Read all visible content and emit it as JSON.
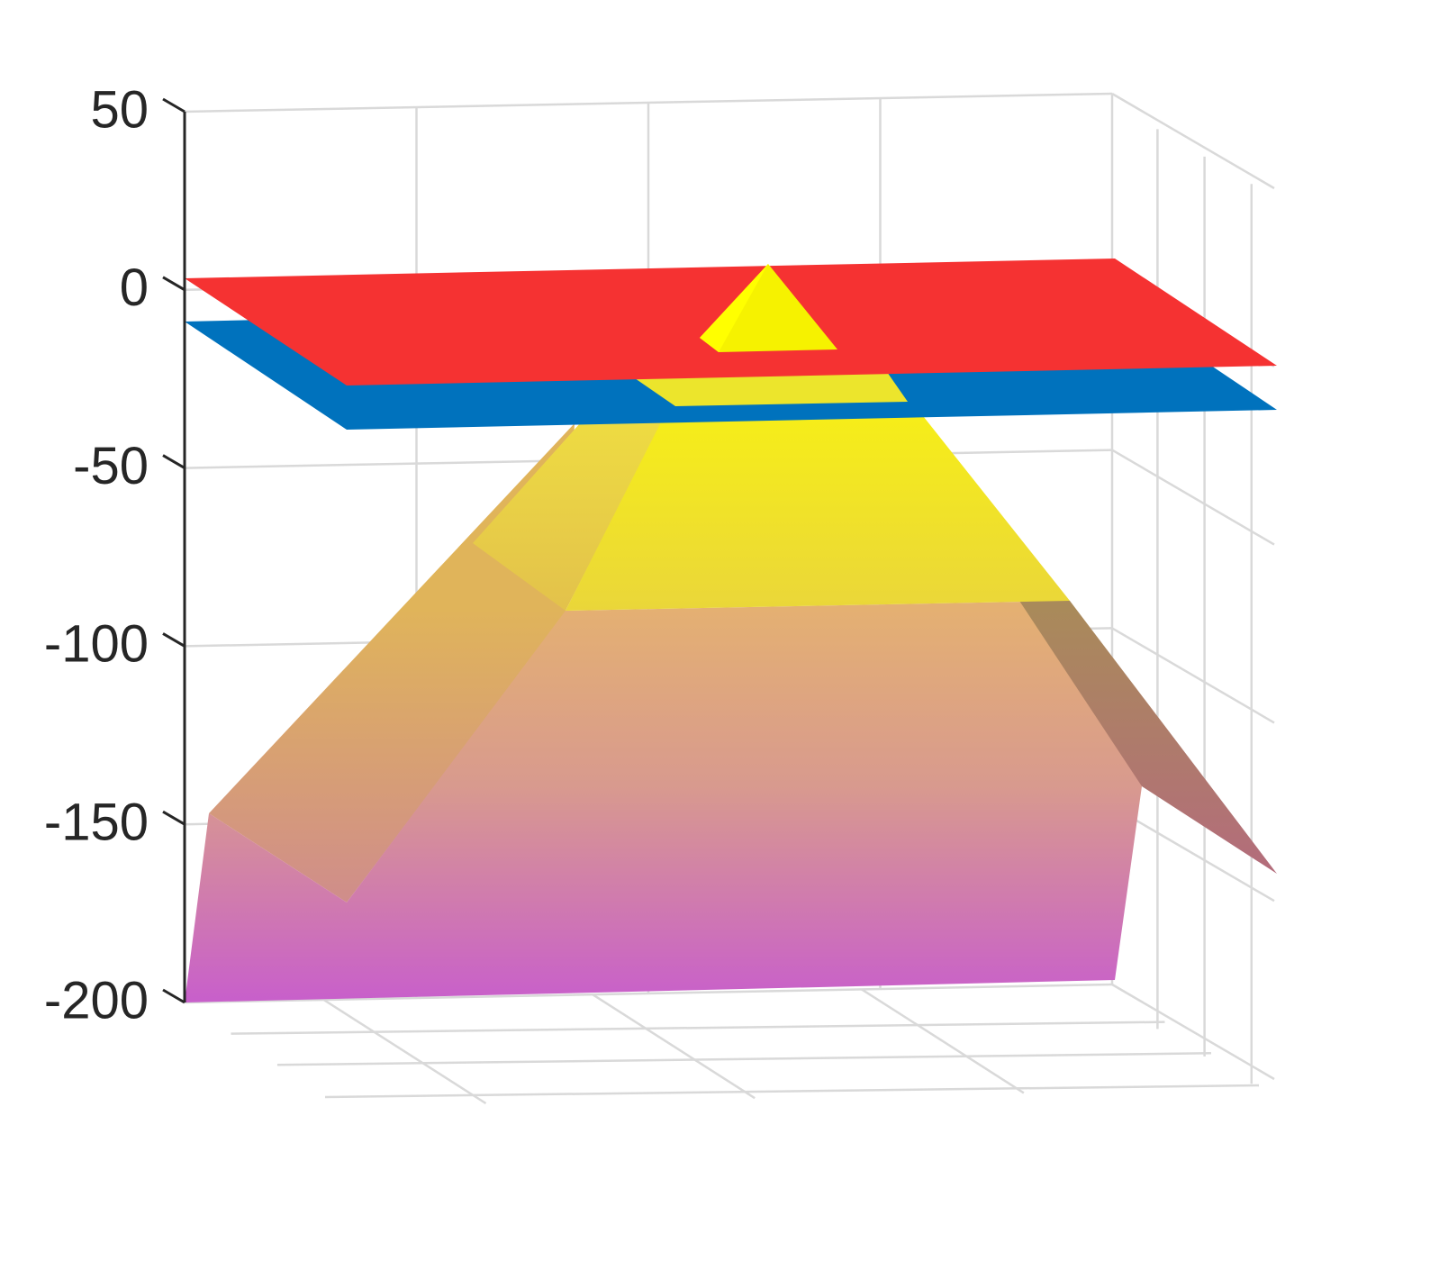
{
  "chart_data": {
    "type": "surface3d",
    "title": "",
    "xlabel": "",
    "ylabel": "",
    "zlabel": "",
    "zlim": [
      -200,
      50
    ],
    "z_ticks": [
      50,
      0,
      -50,
      -100,
      -150,
      -200
    ],
    "z_tick_labels": [
      "50",
      "0",
      "-50",
      "-100",
      "-150",
      "-200"
    ],
    "grid": true,
    "surfaces": [
      {
        "kind": "pyramid",
        "peak_z": 0,
        "base_z": -200,
        "colormap": [
          "#ffff00",
          "#e8c84a",
          "#e2a678",
          "#d58fa0",
          "#c860cc"
        ]
      },
      {
        "kind": "plane",
        "z": 0,
        "color": "#f53232"
      },
      {
        "kind": "plane",
        "z": -25,
        "color": "#0072bd"
      }
    ],
    "colors": {
      "axis": "#262626",
      "grid": "#d9d9d9"
    }
  }
}
